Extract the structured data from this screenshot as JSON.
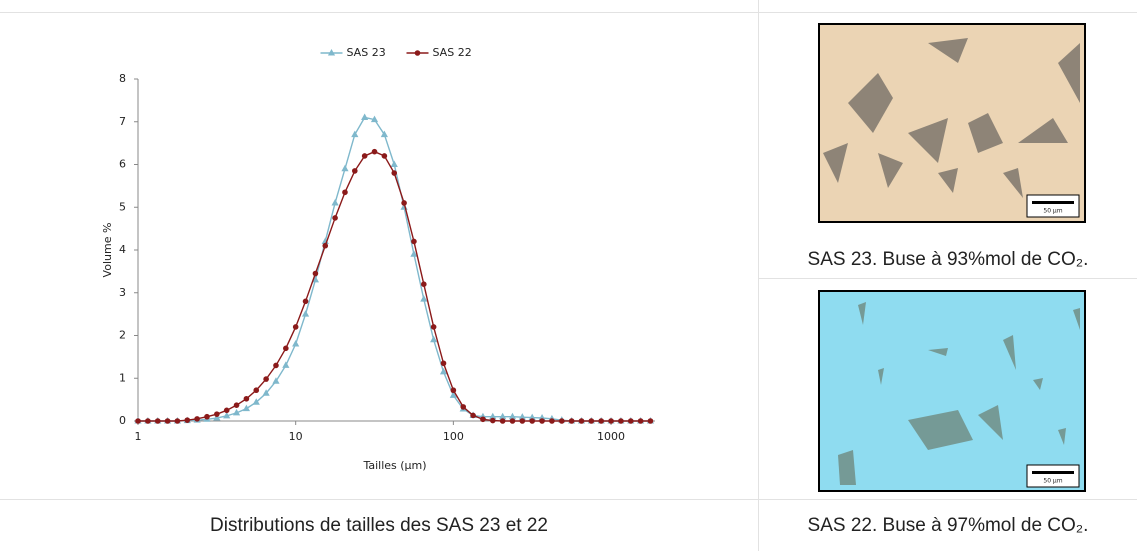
{
  "chart_data": {
    "type": "line",
    "x": [
      1,
      1.155,
      1.334,
      1.54,
      1.778,
      2.054,
      2.371,
      2.738,
      3.162,
      3.652,
      4.217,
      4.87,
      5.623,
      6.494,
      7.499,
      8.66,
      10,
      11.55,
      13.34,
      15.4,
      17.78,
      20.54,
      23.71,
      27.38,
      31.62,
      36.52,
      42.17,
      48.7,
      56.23,
      64.94,
      74.99,
      86.6,
      100,
      115.5,
      133.4,
      154,
      177.8,
      205.4,
      237.1,
      273.8,
      316.2,
      365.2,
      421.7,
      487,
      562.3,
      649.4,
      749.9,
      866,
      1000,
      1155,
      1334,
      1540,
      1778
    ],
    "series": [
      {
        "name": "SAS 23",
        "color": "#7fb8cc",
        "marker": "triangle",
        "values": [
          0,
          0,
          0,
          0,
          0,
          0.01,
          0.02,
          0.04,
          0.07,
          0.12,
          0.19,
          0.29,
          0.44,
          0.65,
          0.93,
          1.3,
          1.8,
          2.5,
          3.3,
          4.2,
          5.1,
          5.9,
          6.7,
          7.1,
          7.05,
          6.7,
          6.0,
          5.0,
          3.9,
          2.85,
          1.9,
          1.15,
          0.6,
          0.28,
          0.13,
          0.1,
          0.1,
          0.1,
          0.1,
          0.09,
          0.08,
          0.07,
          0.05,
          0.02,
          0,
          0,
          0,
          0,
          0,
          0,
          0,
          0,
          0
        ]
      },
      {
        "name": "SAS 22",
        "color": "#8b1a1a",
        "marker": "circle",
        "values": [
          0,
          0,
          0,
          0,
          0,
          0.02,
          0.05,
          0.1,
          0.16,
          0.25,
          0.37,
          0.52,
          0.72,
          0.98,
          1.3,
          1.7,
          2.2,
          2.8,
          3.45,
          4.1,
          4.75,
          5.35,
          5.85,
          6.2,
          6.3,
          6.2,
          5.8,
          5.1,
          4.2,
          3.2,
          2.2,
          1.35,
          0.72,
          0.33,
          0.13,
          0.04,
          0.01,
          0,
          0,
          0,
          0,
          0,
          0,
          0,
          0,
          0,
          0,
          0,
          0,
          0,
          0,
          0,
          0
        ]
      }
    ],
    "xlabel": "Tailles (µm)",
    "ylabel": "Volume %",
    "xscale": "log",
    "xlim": [
      1,
      1900
    ],
    "xticks": [
      1,
      10,
      100,
      1000
    ],
    "ylim": [
      0,
      8
    ],
    "yticks": [
      0,
      1,
      2,
      3,
      4,
      5,
      6,
      7,
      8
    ],
    "legend": "top",
    "grid": false
  },
  "caption": "Distributions de tailles des SAS 23 et 22",
  "images": [
    {
      "caption": "SAS 23. Buse à 93%mol de CO₂.",
      "scale_label": "50 µm"
    },
    {
      "caption": "SAS 22. Buse à 97%mol de CO₂.",
      "scale_label": "50 µm"
    }
  ]
}
